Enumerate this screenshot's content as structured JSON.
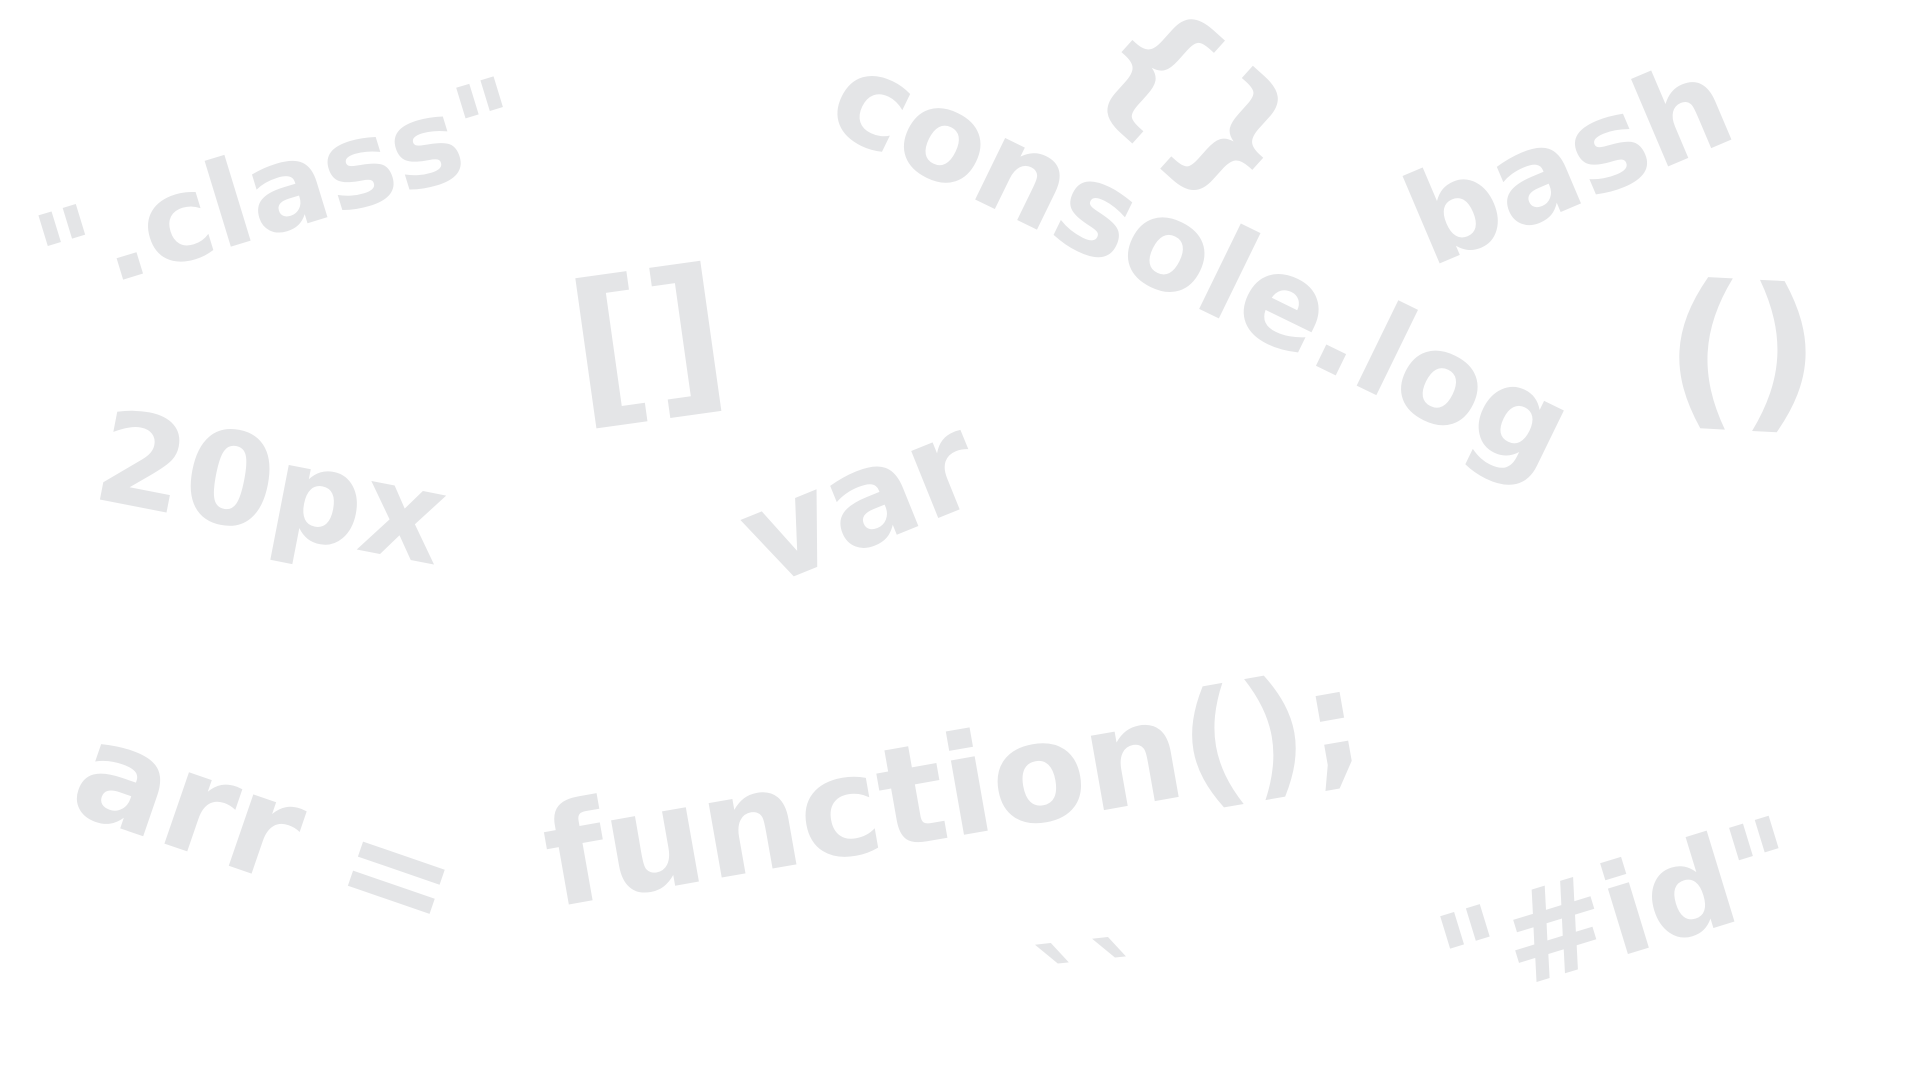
{
  "colors": {
    "background": "#ffffff",
    "text": "#e4e5e7"
  },
  "words": [
    {
      "text": "\".class\""
    },
    {
      "text": "{}"
    },
    {
      "text": "console.log"
    },
    {
      "text": "bash"
    },
    {
      "text": "[]"
    },
    {
      "text": "()"
    },
    {
      "text": "20px"
    },
    {
      "text": "var"
    },
    {
      "text": "arr ="
    },
    {
      "text": "function();"
    },
    {
      "text": "``"
    },
    {
      "text": "\"#id\""
    }
  ]
}
